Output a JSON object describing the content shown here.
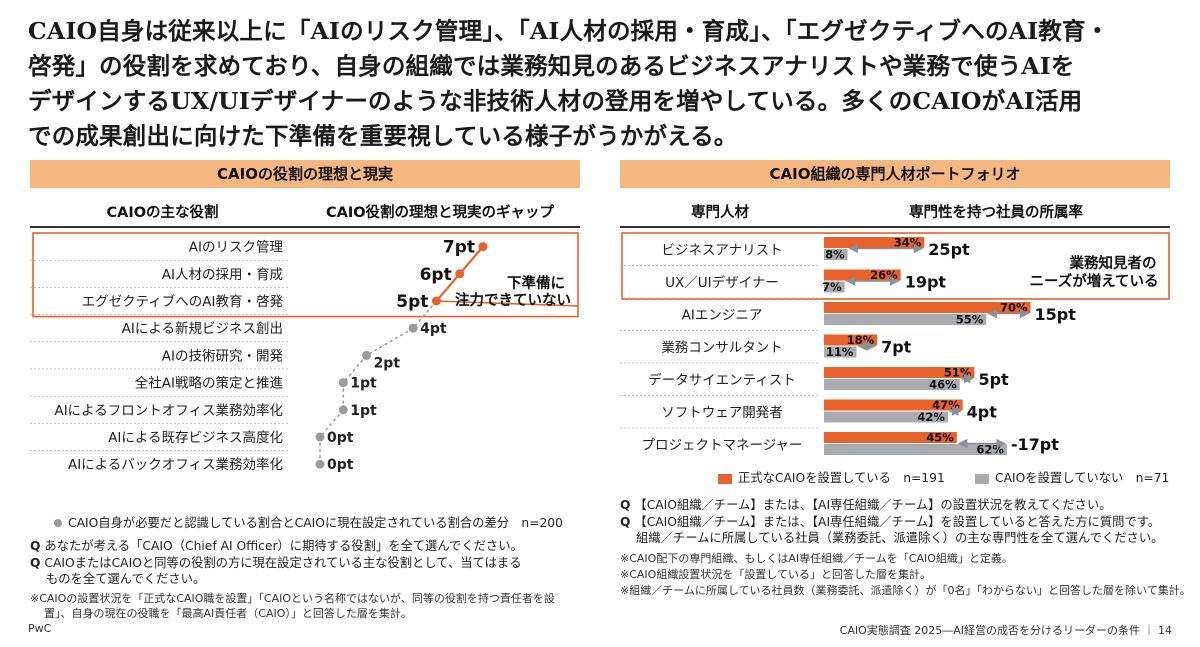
{
  "headline": [
    "CAIO自身は従来以上に「AIのリスク管理」、「AI人材の採用・育成」、「エグゼクティブへのAI教育・",
    "啓発」の役割を求めており、自身の組織では業務知見のあるビジネスアナリストや業務で使うAIを",
    "デザインするUX/UIデザイナーのような非技術人材の登用を増やしている。多くのCAIOがAI活用",
    "での成果創出に向けた下準備を重要視している様子がうかがえる。"
  ],
  "colors": {
    "accent": "#e8622c",
    "gray": "#a9abb0",
    "bar_header": "#f5b680",
    "dot_gray": "#9a9a9a"
  },
  "left": {
    "panel_title": "CAIOの役割の理想と現実",
    "col1_header": "CAIOの主な役割",
    "col2_header": "CAIO役割の理想と現実のギャップ",
    "callout": [
      "下準備に",
      "注力できていない"
    ],
    "legend": "CAIO自身が必要だと認識している割合とCAIOに現在設定されている割合の差分　n=200",
    "notes": [
      {
        "q": "Q",
        "text": "あなたが考える「CAIO（Chief AI Officer）に期待する役割」を全て選んでください。"
      },
      {
        "q": "Q",
        "text": "CAIOまたはCAIOと同等の役割の方に現在設定されている主な役割として、当てはまる"
      },
      {
        "q": "",
        "text": "ものを全て選んでください。"
      }
    ],
    "small_notes": [
      "※CAIOの設置状況を「正式なCAIO職を設置」「CAIOという名称ではないが、同等の役割を持つ責任者を設",
      "置」、自身の現在の役職を「最高AI責任者（CAIO）」と回答した層を集計。"
    ]
  },
  "right": {
    "panel_title": "CAIO組織の専門人材ポートフォリオ",
    "col1_header": "専門人材",
    "col2_header": "専門性を持つ社員の所属率",
    "callout": [
      "業務知見者の",
      "ニーズが増えている"
    ],
    "legend_formal": "正式なCAIOを設置している　n=191",
    "legend_none": "CAIOを設置していない　n=71",
    "notes": [
      {
        "q": "Q",
        "text": "【CAIO組織／チーム】または、【AI専任組織／チーム】の設置状況を教えてください。"
      },
      {
        "q": "Q",
        "text": "【CAIO組織／チーム】または、【AI専任組織／チーム】を設置していると答えた方に質問です。"
      },
      {
        "q": "",
        "text": "組織／チームに所属している社員（業務委託、派遣除く）の主な専門性を全て選んでください。"
      }
    ],
    "small_notes": [
      "※CAIO配下の専門組織、もしくはAI専任組織／チームを「CAIO組織」と定義。",
      "※CAIO組織設置状況を「設置している」と回答した層を集計。",
      "※組織／チームに所属している社員数（業務委託、派遣除く）が「0名」「わからない」と回答した層を除いて集計。"
    ]
  },
  "footer": {
    "left": "PwC",
    "right": "CAIO実態調査 2025―AI経営の成否を分けるリーダーの条件 ｜ 14"
  },
  "chart_data": [
    {
      "type": "line",
      "title": "CAIOの役割の理想と現実",
      "categories": [
        "AIのリスク管理",
        "AI人材の採用・育成",
        "エグゼクティブへのAI教育・啓発",
        "AIによる新規ビジネス創出",
        "AIの技術研究・開発",
        "全社AI戦略の策定と推進",
        "AIによるフロントオフィス業務効率化",
        "AIによる既存ビジネス高度化",
        "AIによるバックオフィス業務効率化"
      ],
      "values": [
        7,
        6,
        5,
        4,
        2,
        1,
        1,
        0,
        0
      ],
      "value_labels": [
        "7pt",
        "6pt",
        "5pt",
        "4pt",
        "2pt",
        "1pt",
        "1pt",
        "0pt",
        "0pt"
      ],
      "highlighted_count": 3,
      "xlim": [
        0,
        7
      ]
    },
    {
      "type": "bar",
      "title": "CAIO組織の専門人材ポートフォリオ",
      "categories": [
        "ビジネスアナリスト",
        "UX／UIデザイナー",
        "AIエンジニア",
        "業務コンサルタント",
        "データサイエンティスト",
        "ソフトウェア開発者",
        "プロジェクトマネージャー"
      ],
      "series": [
        {
          "name": "正式なCAIOを設置している",
          "values": [
            34,
            26,
            70,
            18,
            51,
            47,
            45
          ]
        },
        {
          "name": "CAIOを設置していない",
          "values": [
            8,
            7,
            55,
            11,
            46,
            42,
            62
          ]
        }
      ],
      "diff_labels": [
        "25pt",
        "19pt",
        "15pt",
        "7pt",
        "5pt",
        "4pt",
        "-17pt"
      ],
      "unit": "%",
      "highlighted_count": 2,
      "xlim": [
        0,
        100
      ]
    }
  ]
}
